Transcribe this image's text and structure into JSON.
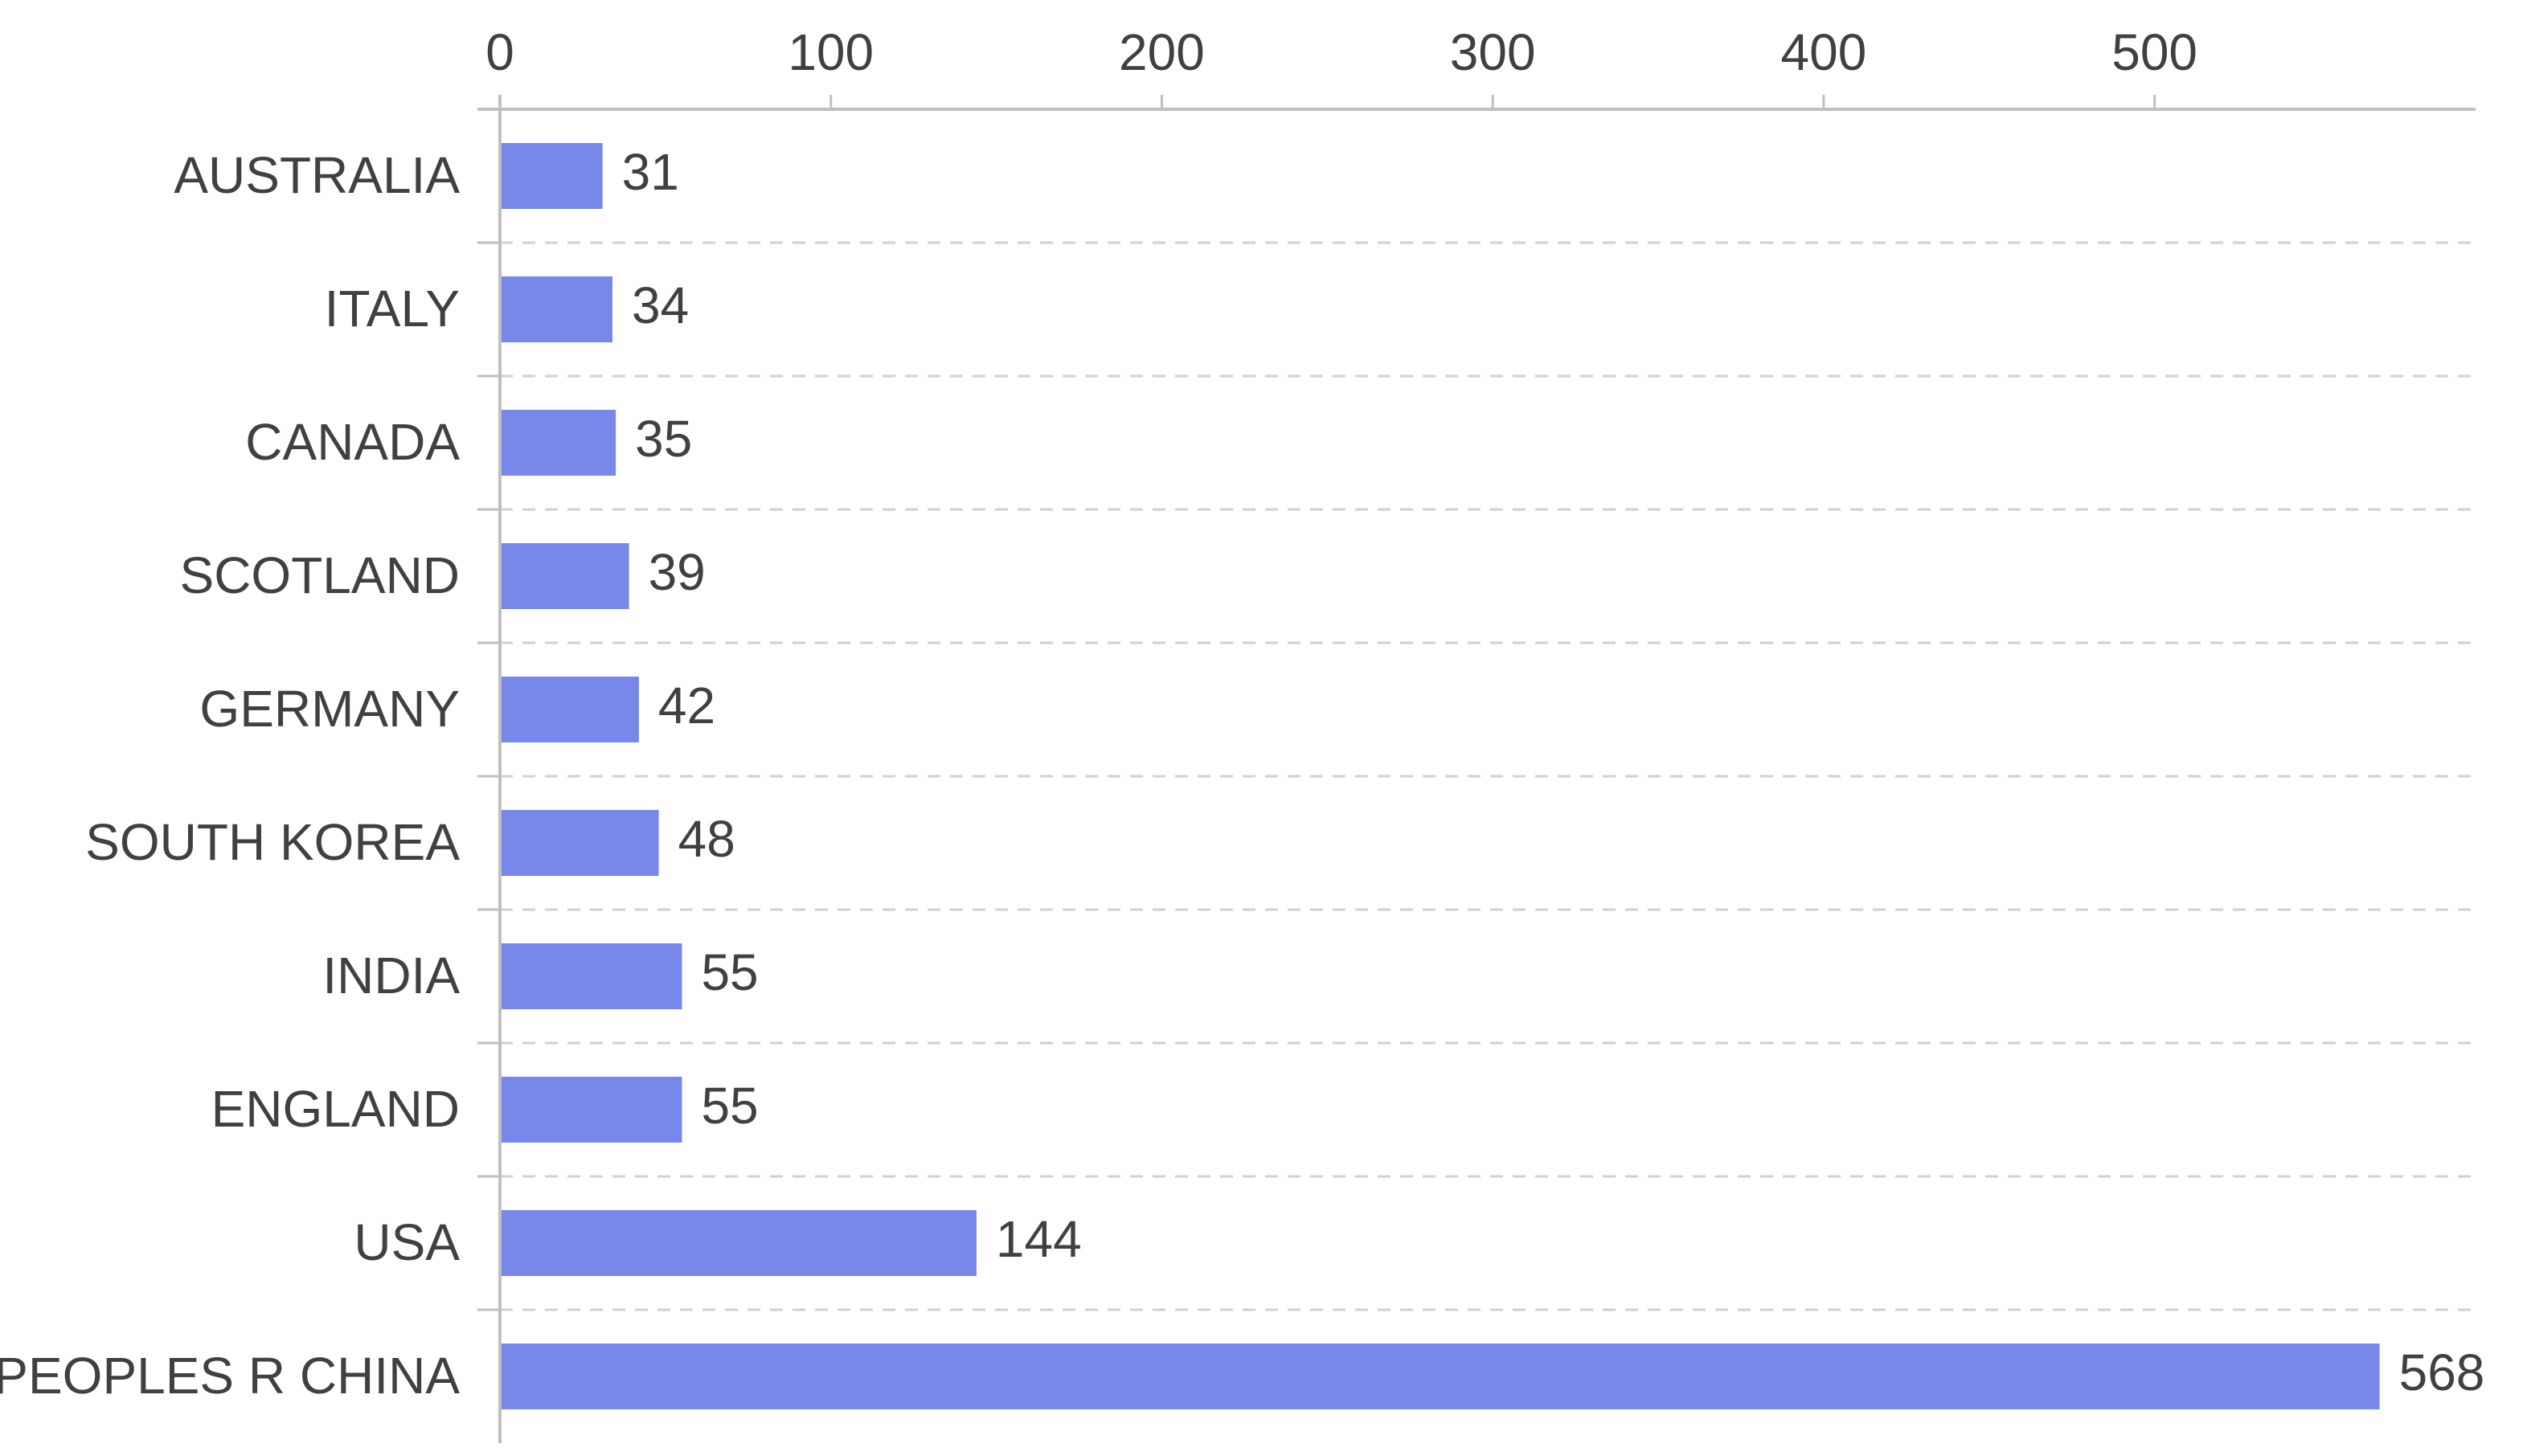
{
  "chart_data": {
    "type": "bar",
    "orientation": "horizontal",
    "categories": [
      "AUSTRALIA",
      "ITALY",
      "CANADA",
      "SCOTLAND",
      "GERMANY",
      "SOUTH KOREA",
      "INDIA",
      "ENGLAND",
      "USA",
      "PEOPLES R CHINA"
    ],
    "values": [
      31,
      34,
      35,
      39,
      42,
      48,
      55,
      55,
      144,
      568
    ],
    "data_labels": [
      "31",
      "34",
      "35",
      "39",
      "42",
      "48",
      "55",
      "55",
      "144",
      "568"
    ],
    "x_ticks": [
      0,
      100,
      200,
      300,
      400,
      500
    ],
    "x_tick_labels": [
      "0",
      "100",
      "200",
      "300",
      "400",
      "500"
    ],
    "xlim": [
      0,
      597
    ],
    "x_axis_position": "top",
    "grid": "dashed horizontal separators between categories",
    "legend": "none",
    "title": "",
    "xlabel": "",
    "ylabel": "",
    "colors": {
      "bar": "#7787EA",
      "axis": "#BFBFBF",
      "grid": "#D0D0D0",
      "text": "#404040"
    }
  }
}
